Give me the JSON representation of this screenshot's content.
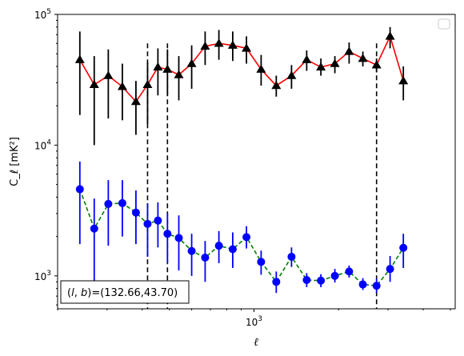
{
  "chart_data": {
    "type": "line",
    "xlabel": "ℓ",
    "ylabel": "C_ℓ  [mK²]",
    "xscale": "log",
    "yscale": "log",
    "xlim": [
      200,
      5200
    ],
    "ylim": [
      560,
      100000
    ],
    "x_tick_labels": [
      {
        "value": 1000,
        "label": "10",
        "exp": "3"
      }
    ],
    "y_tick_labels": [
      {
        "value": 1000,
        "label": "10",
        "exp": "3"
      },
      {
        "value": 10000,
        "label": "10",
        "exp": "4"
      },
      {
        "value": 100000,
        "label": "10",
        "exp": "5"
      }
    ],
    "legend": "upper right (empty)",
    "grid": false,
    "annotation": "(l, b)=(132.66,43.70)",
    "annotation_parts": {
      "open": "(",
      "l": "l",
      "comma": ", ",
      "b": "b",
      "close": ")",
      "value": "=(132.66,43.70)"
    },
    "vlines": [
      418,
      492,
      2730
    ],
    "series": [
      {
        "color": "#ff0000",
        "marker_color": "#000000",
        "marker": "triangle",
        "line_style": "solid",
        "x": [
          240,
          270,
          303,
          340,
          380,
          418,
          455,
          492,
          540,
          600,
          670,
          750,
          840,
          940,
          1060,
          1200,
          1360,
          1540,
          1730,
          1940,
          2180,
          2440,
          2730,
          3050,
          3400
        ],
        "y": [
          45000,
          29000,
          34000,
          28000,
          21500,
          29000,
          39500,
          38000,
          34500,
          42000,
          57000,
          60000,
          58000,
          55000,
          38000,
          28500,
          34000,
          45000,
          39500,
          42000,
          52000,
          46000,
          41000,
          68000,
          31000
        ],
        "err_low": [
          17000,
          10000,
          16000,
          15500,
          12000,
          14500,
          24000,
          24000,
          22000,
          27000,
          41000,
          45000,
          44000,
          42000,
          28500,
          23500,
          27000,
          37000,
          34000,
          35500,
          42000,
          40000,
          36000,
          55000,
          22000
        ],
        "err_high": [
          74000,
          48000,
          54000,
          42000,
          31000,
          43000,
          55000,
          54000,
          48000,
          58000,
          74000,
          76000,
          74000,
          68000,
          49000,
          34000,
          41000,
          53000,
          46000,
          48000,
          61000,
          52000,
          46000,
          80000,
          40000
        ]
      },
      {
        "color": "#008000",
        "marker_color": "#0000ff",
        "marker": "circle",
        "line_style": "dashed",
        "x": [
          240,
          270,
          303,
          340,
          380,
          418,
          455,
          492,
          540,
          600,
          670,
          750,
          840,
          940,
          1060,
          1200,
          1360,
          1540,
          1730,
          1940,
          2180,
          2440,
          2730,
          3050,
          3400
        ],
        "y": [
          4600,
          2300,
          3550,
          3600,
          3050,
          2500,
          2650,
          2100,
          1950,
          1550,
          1380,
          1700,
          1600,
          1980,
          1280,
          900,
          1400,
          930,
          920,
          1000,
          1080,
          860,
          840,
          1130,
          1640
        ],
        "err_low": [
          1750,
          800,
          1700,
          2000,
          1750,
          1400,
          1650,
          1250,
          1100,
          1000,
          900,
          1250,
          1150,
          1620,
          1020,
          740,
          1170,
          820,
          820,
          890,
          970,
          780,
          740,
          900,
          1150
        ],
        "err_high": [
          7500,
          3900,
          5400,
          5400,
          4500,
          3600,
          3650,
          3000,
          2900,
          2100,
          1850,
          2200,
          2150,
          2400,
          1560,
          1080,
          1650,
          1050,
          1030,
          1130,
          1200,
          960,
          950,
          1420,
          2100
        ]
      }
    ]
  }
}
